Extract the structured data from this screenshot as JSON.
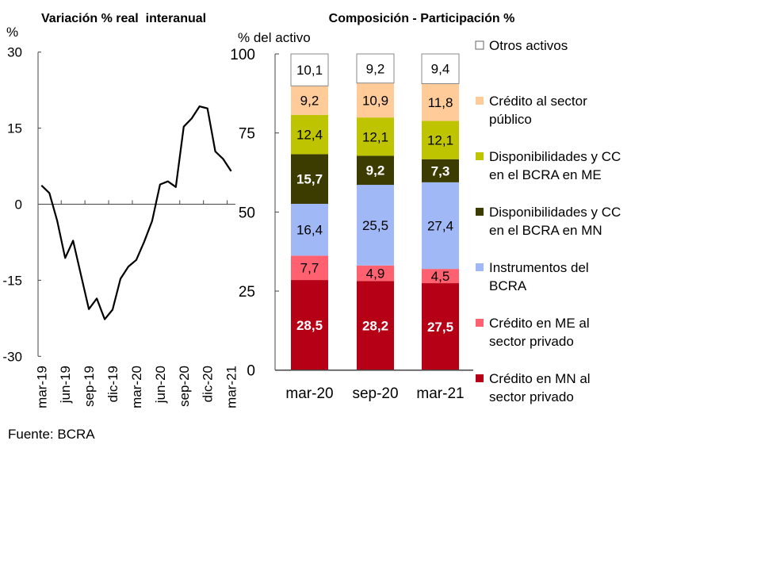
{
  "source": "Fuente: BCRA",
  "chart_data": [
    {
      "type": "line",
      "title": "Variación % real  interanual",
      "ylabel": "%",
      "ylim": [
        -30,
        30
      ],
      "yticks": [
        "30",
        "15",
        "0",
        "-15",
        "-30"
      ],
      "ytick_values": [
        30,
        15,
        0,
        -15,
        -30
      ],
      "xtick_labels": [
        "mar-19",
        "jun-19",
        "sep-19",
        "dic-19",
        "mar-20",
        "jun-20",
        "sep-20",
        "dic-20",
        "mar-21"
      ],
      "grid": false,
      "color": "#000000",
      "x": [
        "mar-19",
        "abr-19",
        "may-19",
        "jun-19",
        "jul-19",
        "ago-19",
        "sep-19",
        "oct-19",
        "nov-19",
        "dic-19",
        "ene-20",
        "feb-20",
        "mar-20",
        "abr-20",
        "may-20",
        "jun-20",
        "jul-20",
        "ago-20",
        "sep-20",
        "oct-20",
        "nov-20",
        "dic-20",
        "ene-21",
        "feb-21",
        "mar-21"
      ],
      "values": [
        3.7,
        2.2,
        -3.3,
        -10.6,
        -7.2,
        -14.0,
        -20.7,
        -18.6,
        -22.7,
        -20.8,
        -14.7,
        -12.3,
        -11.0,
        -7.4,
        -3.3,
        3.9,
        4.5,
        3.4,
        15.3,
        16.9,
        19.3,
        18.9,
        10.4,
        8.9,
        6.5
      ]
    },
    {
      "type": "bar",
      "stacked": true,
      "title": "Composición - Participación %",
      "ylabel": "% del activo",
      "ylim": [
        0,
        100
      ],
      "yticks": [
        "100",
        "75",
        "50",
        "25",
        "0"
      ],
      "ytick_values": [
        100,
        75,
        50,
        25,
        0
      ],
      "categories": [
        "mar-20",
        "sep-20",
        "mar-21"
      ],
      "legend": "right",
      "series": [
        {
          "name": "Crédito en MN al sector privado",
          "lines": [
            "Crédito en MN al",
            "sector privado"
          ],
          "color": "#b50015",
          "label_color": "#ffffff",
          "values": [
            28.5,
            28.2,
            27.5
          ],
          "labels": [
            "28,5",
            "28,2",
            "27,5"
          ]
        },
        {
          "name": "Crédito en ME al sector privado",
          "lines": [
            "Crédito en ME al",
            "sector privado"
          ],
          "color": "#ff6170",
          "label_color": "#000000",
          "values": [
            7.7,
            4.9,
            4.5
          ],
          "labels": [
            "7,7",
            "4,9",
            "4,5"
          ]
        },
        {
          "name": "Instrumentos del BCRA",
          "lines": [
            "Instrumentos del",
            "BCRA"
          ],
          "color": "#a0b8f5",
          "label_color": "#000000",
          "values": [
            16.4,
            25.5,
            27.4
          ],
          "labels": [
            "16,4",
            "25,5",
            "27,4"
          ]
        },
        {
          "name": "Disponibilidades y CC en el BCRA en MN",
          "lines": [
            "Disponibilidades y CC",
            "en el BCRA en MN"
          ],
          "color": "#3c3c00",
          "label_color": "#ffffff",
          "values": [
            15.7,
            9.2,
            7.3
          ],
          "labels": [
            "15,7",
            "9,2",
            "7,3"
          ]
        },
        {
          "name": "Disponibilidades y CC en el BCRA en ME",
          "lines": [
            "Disponibilidades y CC",
            "en el BCRA en ME"
          ],
          "color": "#bec400",
          "label_color": "#000000",
          "values": [
            12.4,
            12.1,
            12.1
          ],
          "labels": [
            "12,4",
            "12,1",
            "12,1"
          ]
        },
        {
          "name": "Crédito al sector público",
          "lines": [
            "Crédito al sector",
            "público"
          ],
          "color": "#ffcc99",
          "label_color": "#000000",
          "values": [
            9.2,
            10.9,
            11.8
          ],
          "labels": [
            "9,2",
            "10,9",
            "11,8"
          ]
        },
        {
          "name": "Otros activos",
          "lines": [
            "Otros activos"
          ],
          "color": "#ffffff",
          "label_color": "#000000",
          "values": [
            10.1,
            9.2,
            9.4
          ],
          "labels": [
            "10,1",
            "9,2",
            "9,4"
          ]
        }
      ]
    }
  ]
}
